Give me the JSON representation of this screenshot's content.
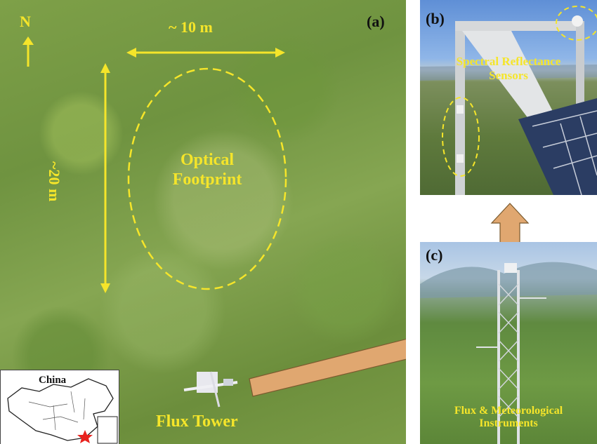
{
  "panel_a": {
    "letter": "(a)",
    "north": "N",
    "width_label": "~ 10 m",
    "height_label": "~20 m",
    "footprint_label_line1": "Optical",
    "footprint_label_line2": "Footprint",
    "tower_label": "Flux Tower",
    "inset_label": "China"
  },
  "panel_b": {
    "letter": "(b)",
    "label_line1": "Spectral Reflectance",
    "label_line2": "Sensors"
  },
  "panel_c": {
    "letter": "(c)",
    "label_line1": "Flux & Meteorological",
    "label_line2": "Instruments"
  },
  "colors": {
    "annotation": "#f5e52a",
    "arrow_fill": "#e0a770",
    "arrow_stroke": "#7a5a2e"
  }
}
